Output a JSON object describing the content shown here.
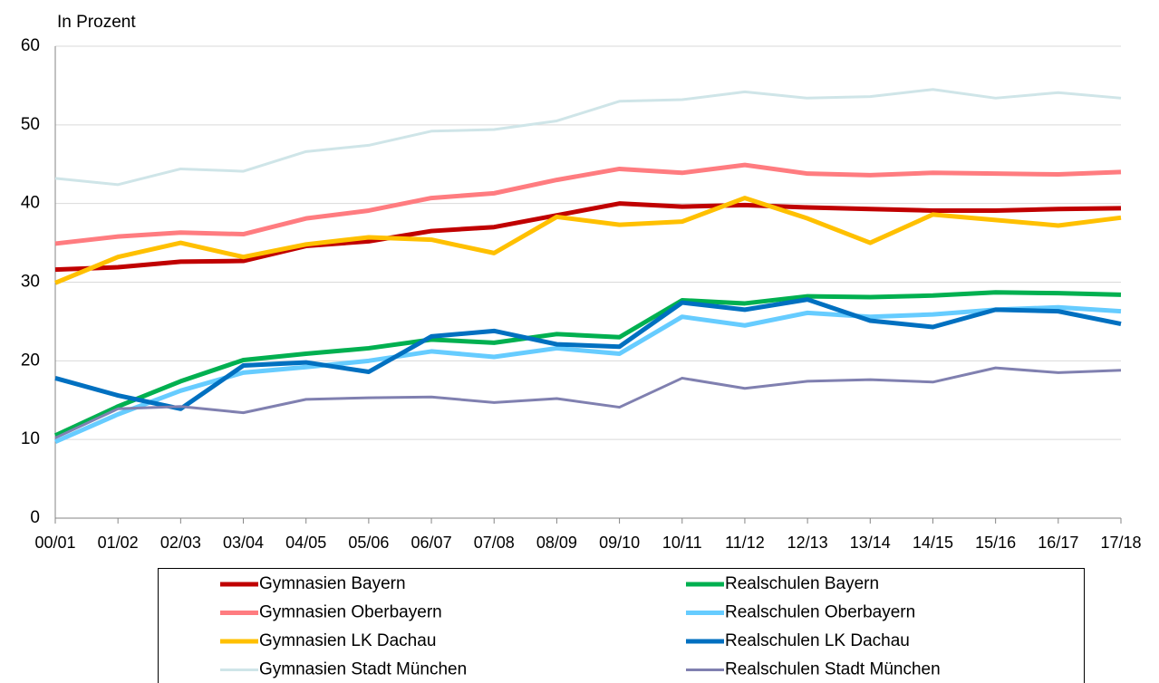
{
  "chart_data": {
    "type": "line",
    "y_axis_label": "In Prozent",
    "categories": [
      "00/01",
      "01/02",
      "02/03",
      "03/04",
      "04/05",
      "05/06",
      "06/07",
      "07/08",
      "08/09",
      "09/10",
      "10/11",
      "11/12",
      "12/13",
      "13/14",
      "14/15",
      "15/16",
      "16/17",
      "17/18"
    ],
    "ylim": [
      0,
      60
    ],
    "yticks": [
      0,
      10,
      20,
      30,
      40,
      50,
      60
    ],
    "grid": true,
    "series": [
      {
        "name": "Gymnasien Bayern",
        "color": "#c00000",
        "values": [
          31.6,
          31.9,
          32.6,
          32.7,
          34.6,
          35.2,
          36.5,
          37.0,
          38.5,
          40.0,
          39.6,
          39.8,
          39.5,
          39.3,
          39.1,
          39.1,
          39.3,
          39.4
        ]
      },
      {
        "name": "Gymnasien Oberbayern",
        "color": "#ff7c80",
        "values": [
          34.9,
          35.8,
          36.3,
          36.1,
          38.1,
          39.1,
          40.7,
          41.3,
          43.0,
          44.4,
          43.9,
          44.9,
          43.8,
          43.6,
          43.9,
          43.8,
          43.7,
          44.0
        ]
      },
      {
        "name": "Gymnasien LK Dachau",
        "color": "#ffc000",
        "values": [
          29.9,
          33.2,
          35.0,
          33.2,
          34.8,
          35.7,
          35.4,
          33.7,
          38.3,
          37.3,
          37.7,
          40.7,
          38.1,
          35.0,
          38.6,
          37.9,
          37.2,
          38.2
        ]
      },
      {
        "name": "Gymnasien Stadt München",
        "color": "#cfe5e8",
        "values": [
          43.2,
          42.4,
          44.4,
          44.1,
          46.6,
          47.4,
          49.2,
          49.4,
          50.5,
          53.0,
          53.2,
          54.2,
          53.4,
          53.6,
          54.5,
          53.4,
          54.1,
          53.4
        ]
      },
      {
        "name": "Realschulen Bayern",
        "color": "#00b050",
        "values": [
          10.5,
          14.2,
          17.4,
          20.1,
          20.9,
          21.6,
          22.7,
          22.3,
          23.4,
          23.0,
          27.7,
          27.3,
          28.2,
          28.1,
          28.3,
          28.7,
          28.6,
          28.4
        ]
      },
      {
        "name": "Realschulen Oberbayern",
        "color": "#66ccff",
        "values": [
          9.7,
          13.2,
          16.2,
          18.5,
          19.2,
          20.0,
          21.2,
          20.5,
          21.6,
          20.9,
          25.6,
          24.5,
          26.1,
          25.6,
          25.9,
          26.5,
          26.8,
          26.3
        ]
      },
      {
        "name": "Realschulen LK Dachau",
        "color": "#0070c0",
        "values": [
          17.8,
          15.6,
          13.9,
          19.4,
          19.8,
          18.6,
          23.1,
          23.8,
          22.1,
          21.8,
          27.4,
          26.5,
          27.8,
          25.1,
          24.3,
          26.5,
          26.3,
          24.7
        ]
      },
      {
        "name": "Realschulen Stadt München",
        "color": "#8080b0",
        "values": [
          10.2,
          13.9,
          14.2,
          13.4,
          15.1,
          15.3,
          15.4,
          14.7,
          15.2,
          14.1,
          17.8,
          16.5,
          17.4,
          17.6,
          17.3,
          19.1,
          18.5,
          18.8
        ]
      }
    ]
  }
}
